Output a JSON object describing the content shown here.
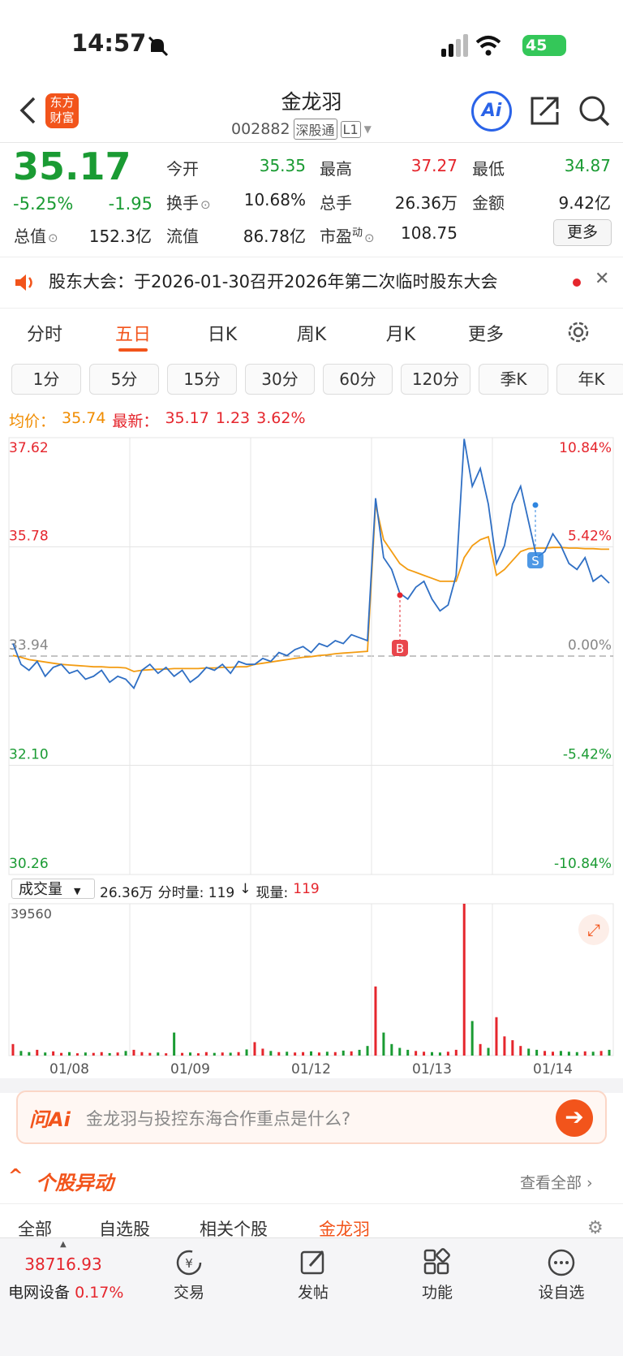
{
  "status": {
    "time": "14:57",
    "battery": "45"
  },
  "header": {
    "logo": [
      "东方",
      "财富"
    ],
    "title": "金龙羽",
    "code": "002882",
    "tags": [
      "深股通",
      "L1"
    ],
    "ai": "Ai"
  },
  "quote": {
    "price": "35.17",
    "change_pct": "-5.25%",
    "change": "-1.95",
    "more": "更多",
    "stats": [
      {
        "label": "今开",
        "value": "35.35",
        "color": "#1a9b33"
      },
      {
        "label": "最高",
        "value": "37.27",
        "color": "#e5262d"
      },
      {
        "label": "最低",
        "value": "34.87",
        "color": "#1a9b33"
      },
      {
        "label": "换手",
        "value": "10.68%",
        "color": "#222"
      },
      {
        "label": "总手",
        "value": "26.36万",
        "color": "#222"
      },
      {
        "label": "金额",
        "value": "9.42亿",
        "color": "#222"
      },
      {
        "label": "总值",
        "value": "152.3亿",
        "color": "#222"
      },
      {
        "label": "流值",
        "value": "86.78亿",
        "color": "#222"
      },
      {
        "label": "市盈",
        "sup": "动",
        "value": "108.75",
        "color": "#222"
      }
    ]
  },
  "notice": "股东大会：于2026-01-30召开2026年第二次临时股东大会",
  "tabs": {
    "items": [
      "分时",
      "五日",
      "日K",
      "周K",
      "月K",
      "更多"
    ],
    "active": 1
  },
  "periods": [
    "1分",
    "5分",
    "15分",
    "30分",
    "60分",
    "120分",
    "季K",
    "年K"
  ],
  "info": [
    {
      "text": "均价：",
      "color": "#f08c00"
    },
    {
      "text": "35.74",
      "color": "#f08c00"
    },
    {
      "text": "最新：",
      "color": "#e5262d"
    },
    {
      "text": "35.17",
      "color": "#e5262d"
    },
    {
      "text": "1.23",
      "color": "#e5262d"
    },
    {
      "text": "3.62%",
      "color": "#e5262d"
    }
  ],
  "chart_data": {
    "type": "line",
    "days": [
      "01/08",
      "01/09",
      "01/12",
      "01/13",
      "01/14"
    ],
    "ylim": [
      30.26,
      37.62
    ],
    "yticks": [
      30.26,
      {
        "value": 32.1,
        "label": "32.10"
      },
      33.94,
      35.78,
      37.62
    ],
    "y2lim": [
      -10.84,
      10.84
    ],
    "y2ticks": [
      {
        "value": -10.84,
        "label": "-10.84%"
      },
      {
        "value": -5.42,
        "label": "-5.42%"
      },
      {
        "value": 0,
        "label": "0.00%"
      },
      {
        "value": 5.42,
        "label": "5.42%"
      },
      {
        "value": 10.84,
        "label": "10.84%"
      }
    ],
    "annotations": [
      "B",
      "S"
    ],
    "series": [
      {
        "color": "#2f6fc4",
        "values": [
          34.15,
          33.8,
          33.7,
          33.85,
          33.6,
          33.75,
          33.8,
          33.65,
          33.7,
          33.55,
          33.6,
          33.7,
          33.5,
          33.6,
          33.55,
          33.4,
          33.7,
          33.8,
          33.65,
          33.75,
          33.6,
          33.7,
          33.5,
          33.6,
          33.75,
          33.7,
          33.8,
          33.65,
          33.85,
          33.8,
          33.8,
          33.9,
          33.85,
          34.0,
          33.95,
          34.05,
          34.1,
          34.0,
          34.15,
          34.1,
          34.2,
          34.15,
          34.3,
          34.25,
          34.2,
          36.6,
          35.6,
          35.4,
          35.0,
          34.9,
          35.1,
          35.2,
          34.9,
          34.7,
          34.8,
          35.3,
          37.6,
          36.8,
          37.1,
          36.5,
          35.5,
          35.8,
          36.5,
          36.8,
          36.2,
          35.6,
          35.7,
          36.0,
          35.8,
          35.5,
          35.4,
          35.6,
          35.2,
          35.3,
          35.17
        ]
      },
      {
        "color": "#f39c12",
        "values": [
          33.95,
          33.92,
          33.88,
          33.86,
          33.84,
          33.82,
          33.8,
          33.79,
          33.78,
          33.77,
          33.76,
          33.76,
          33.75,
          33.75,
          33.74,
          33.68,
          33.7,
          33.71,
          33.72,
          33.72,
          33.73,
          33.73,
          33.73,
          33.73,
          33.74,
          33.74,
          33.75,
          33.75,
          33.76,
          33.76,
          33.8,
          33.82,
          33.84,
          33.86,
          33.88,
          33.9,
          33.92,
          33.93,
          33.95,
          33.96,
          33.98,
          33.99,
          34.0,
          34.01,
          34.02,
          36.5,
          35.9,
          35.7,
          35.5,
          35.4,
          35.35,
          35.3,
          35.25,
          35.2,
          35.2,
          35.2,
          35.6,
          35.8,
          35.9,
          35.95,
          35.3,
          35.4,
          35.55,
          35.7,
          35.75,
          35.76,
          35.76,
          35.77,
          35.77,
          35.76,
          35.76,
          35.75,
          35.75,
          35.74,
          35.74
        ]
      }
    ],
    "volume": {
      "label": "成交量",
      "total": "26.36万",
      "tick_volume": "分时量: 119",
      "arrow": "↓",
      "now_label": "现量:",
      "now": "119",
      "ylim": [
        0,
        39560
      ],
      "yticks": [
        39560
      ],
      "up_color": "#e5262d",
      "down_color": "#1a9b33",
      "values": [
        3000,
        1200,
        900,
        1500,
        800,
        1100,
        700,
        900,
        600,
        800,
        700,
        900,
        650,
        800,
        1200,
        1500,
        900,
        700,
        800,
        600,
        6000,
        700,
        800,
        600,
        900,
        700,
        800,
        750,
        900,
        1600,
        3500,
        1800,
        1200,
        900,
        1000,
        800,
        900,
        1100,
        800,
        1000,
        900,
        1300,
        1100,
        1500,
        2500,
        18000,
        6000,
        3000,
        2000,
        1500,
        1200,
        1000,
        900,
        800,
        1000,
        1500,
        39560,
        9000,
        3000,
        2000,
        10000,
        5000,
        4000,
        2500,
        1800,
        1500,
        1200,
        1000,
        1200,
        1000,
        900,
        1100,
        1000,
        1200,
        1500
      ]
    }
  },
  "ask": {
    "brand": "问Ai",
    "placeholder": "金龙羽与投控东海合作重点是什么?"
  },
  "section": {
    "title": "个股异动",
    "more": "查看全部",
    "tabs": [
      "全部",
      "自选股",
      "相关个股",
      "金龙羽"
    ]
  },
  "bottom": {
    "index_value": "38716.93",
    "index_name": "电网设备",
    "index_change": "0.17%",
    "items": [
      "交易",
      "发帖",
      "功能",
      "设自选"
    ]
  }
}
